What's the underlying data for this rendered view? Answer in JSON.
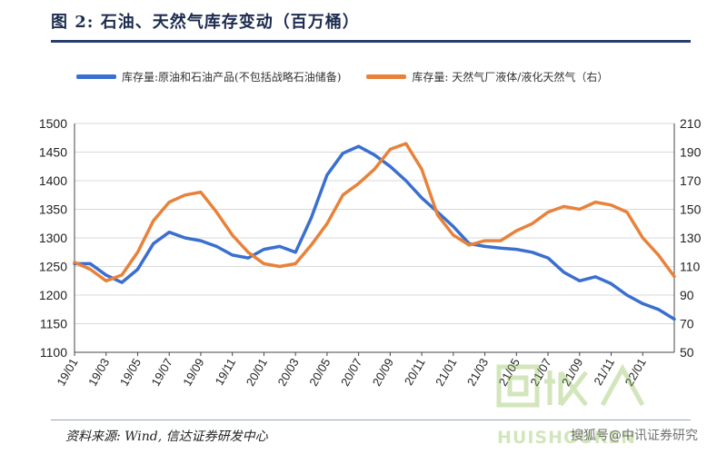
{
  "header": {
    "title": "图 2: 石油、天然气库存变动（百万桶）"
  },
  "legend": {
    "left_series_label": "库存量:原油和石油产品(不包括战略石油储备)",
    "right_series_label": "库存量: 天然气厂液体/液化天然气（右）"
  },
  "footer": {
    "source": "资料来源: Wind, 信达证券研发中心"
  },
  "watermark": {
    "text": "搜狐号@中讯证券研究",
    "logo_text": "HUISHOUREN"
  },
  "colors": {
    "left_series": "#3a6fd0",
    "right_series": "#e8823a",
    "grid": "#d9d9d9",
    "axis": "#444444",
    "title": "#1c2b4f"
  },
  "chart_data": {
    "type": "line",
    "x": [
      "19/01",
      "19/02",
      "19/03",
      "19/04",
      "19/05",
      "19/06",
      "19/07",
      "19/08",
      "19/09",
      "19/10",
      "19/11",
      "19/12",
      "20/01",
      "20/02",
      "20/03",
      "20/04",
      "20/05",
      "20/06",
      "20/07",
      "20/08",
      "20/09",
      "20/10",
      "20/11",
      "20/12",
      "21/01",
      "21/02",
      "21/03",
      "21/04",
      "21/05",
      "21/06",
      "21/07",
      "21/08",
      "21/09",
      "21/10",
      "21/11",
      "21/12",
      "22/01",
      "22/02",
      "22/03"
    ],
    "x_tick_labels": [
      "19/01",
      "19/03",
      "19/05",
      "19/07",
      "19/09",
      "19/11",
      "20/01",
      "20/03",
      "20/05",
      "20/07",
      "20/09",
      "20/11",
      "21/01",
      "21/03",
      "21/05",
      "21/07",
      "21/09",
      "21/11",
      "22/01"
    ],
    "series": [
      {
        "name": "库存量:原油和石油产品(不包括战略石油储备)",
        "axis": "left",
        "values": [
          1255,
          1255,
          1235,
          1222,
          1245,
          1290,
          1310,
          1300,
          1295,
          1285,
          1270,
          1265,
          1280,
          1285,
          1275,
          1335,
          1410,
          1448,
          1460,
          1445,
          1425,
          1400,
          1370,
          1345,
          1320,
          1290,
          1285,
          1282,
          1280,
          1275,
          1265,
          1240,
          1225,
          1232,
          1220,
          1200,
          1185,
          1175,
          1158
        ]
      },
      {
        "name": "库存量: 天然气厂液体/液化天然气（右）",
        "axis": "right",
        "values": [
          113,
          108,
          100,
          104,
          120,
          142,
          155,
          160,
          162,
          148,
          132,
          120,
          112,
          110,
          112,
          125,
          140,
          160,
          168,
          178,
          192,
          196,
          178,
          146,
          132,
          125,
          128,
          128,
          135,
          140,
          148,
          152,
          150,
          155,
          153,
          148,
          130,
          118,
          103
        ]
      }
    ],
    "ylim_left": [
      1100,
      1500
    ],
    "yticks_left": [
      1100,
      1150,
      1200,
      1250,
      1300,
      1350,
      1400,
      1450,
      1500
    ],
    "ylim_right": [
      50,
      210
    ],
    "yticks_right": [
      50,
      70,
      90,
      110,
      130,
      150,
      170,
      190,
      210
    ],
    "grid": true,
    "legend_position": "top"
  }
}
